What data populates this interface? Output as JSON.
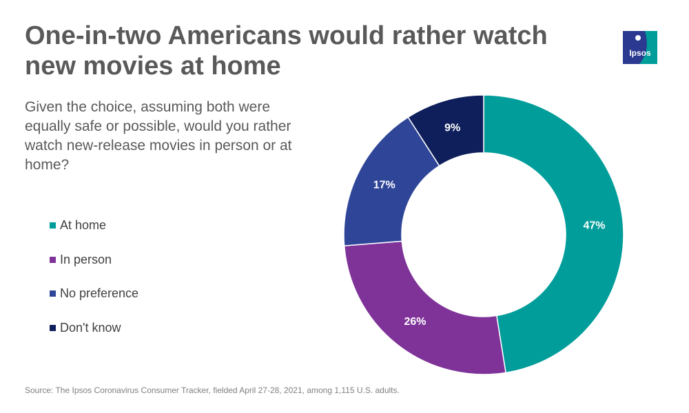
{
  "title": "One-in-two Americans would rather watch new movies at home",
  "subtitle": "Given the choice, assuming both were equally safe or possible, would you rather watch new-release movies in person or at home?",
  "source": "Source: The Ipsos Coronavirus Consumer Tracker, fielded April 27-28, 2021, among 1,115 U.S. adults.",
  "logo": {
    "text": "Ipsos",
    "color_dark": "#2b3990",
    "color_teal": "#009d9a"
  },
  "chart_data": {
    "type": "pie",
    "donut": true,
    "categories": [
      "At home",
      "In person",
      "No preference",
      "Don't know"
    ],
    "values": [
      47,
      26,
      17,
      9
    ],
    "labels": [
      "47%",
      "26%",
      "17%",
      "9%"
    ],
    "colors": [
      "#009d9a",
      "#7f3399",
      "#2e4598",
      "#0e1f5b"
    ],
    "legend_position": "left"
  }
}
